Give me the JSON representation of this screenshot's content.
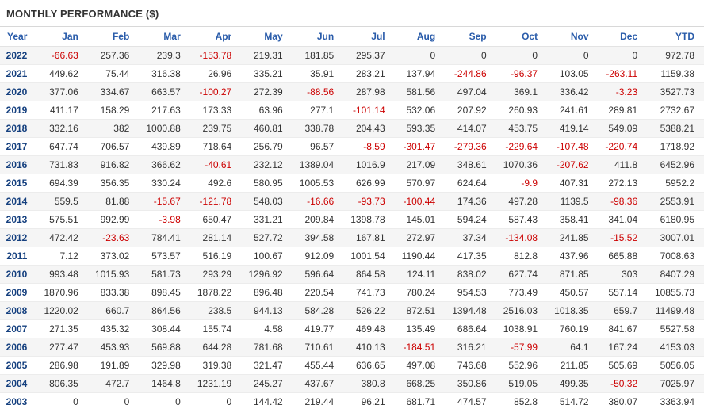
{
  "title": "MONTHLY PERFORMANCE ($)",
  "colors": {
    "negative_value": "#cc0000",
    "positive_value": "#333333",
    "column_header": "#2a5caa",
    "year_label": "#15407f",
    "zebra_stripe": "#f5f5f5"
  },
  "chart_data": {
    "type": "table",
    "title": "MONTHLY PERFORMANCE ($)",
    "columns": [
      "Year",
      "Jan",
      "Feb",
      "Mar",
      "Apr",
      "May",
      "Jun",
      "Jul",
      "Aug",
      "Sep",
      "Oct",
      "Nov",
      "Dec",
      "YTD"
    ],
    "rows": [
      {
        "year": "2022",
        "values": [
          "-66.63",
          "257.36",
          "239.3",
          "-153.78",
          "219.31",
          "181.85",
          "295.37",
          "0",
          "0",
          "0",
          "0",
          "0",
          "972.78"
        ]
      },
      {
        "year": "2021",
        "values": [
          "449.62",
          "75.44",
          "316.38",
          "26.96",
          "335.21",
          "35.91",
          "283.21",
          "137.94",
          "-244.86",
          "-96.37",
          "103.05",
          "-263.11",
          "1159.38"
        ]
      },
      {
        "year": "2020",
        "values": [
          "377.06",
          "334.67",
          "663.57",
          "-100.27",
          "272.39",
          "-88.56",
          "287.98",
          "581.56",
          "497.04",
          "369.1",
          "336.42",
          "-3.23",
          "3527.73"
        ]
      },
      {
        "year": "2019",
        "values": [
          "411.17",
          "158.29",
          "217.63",
          "173.33",
          "63.96",
          "277.1",
          "-101.14",
          "532.06",
          "207.92",
          "260.93",
          "241.61",
          "289.81",
          "2732.67"
        ]
      },
      {
        "year": "2018",
        "values": [
          "332.16",
          "382",
          "1000.88",
          "239.75",
          "460.81",
          "338.78",
          "204.43",
          "593.35",
          "414.07",
          "453.75",
          "419.14",
          "549.09",
          "5388.21"
        ]
      },
      {
        "year": "2017",
        "values": [
          "647.74",
          "706.57",
          "439.89",
          "718.64",
          "256.79",
          "96.57",
          "-8.59",
          "-301.47",
          "-279.36",
          "-229.64",
          "-107.48",
          "-220.74",
          "1718.92"
        ]
      },
      {
        "year": "2016",
        "values": [
          "731.83",
          "916.82",
          "366.62",
          "-40.61",
          "232.12",
          "1389.04",
          "1016.9",
          "217.09",
          "348.61",
          "1070.36",
          "-207.62",
          "411.8",
          "6452.96"
        ]
      },
      {
        "year": "2015",
        "values": [
          "694.39",
          "356.35",
          "330.24",
          "492.6",
          "580.95",
          "1005.53",
          "626.99",
          "570.97",
          "624.64",
          "-9.9",
          "407.31",
          "272.13",
          "5952.2"
        ]
      },
      {
        "year": "2014",
        "values": [
          "559.5",
          "81.88",
          "-15.67",
          "-121.78",
          "548.03",
          "-16.66",
          "-93.73",
          "-100.44",
          "174.36",
          "497.28",
          "1139.5",
          "-98.36",
          "2553.91"
        ]
      },
      {
        "year": "2013",
        "values": [
          "575.51",
          "992.99",
          "-3.98",
          "650.47",
          "331.21",
          "209.84",
          "1398.78",
          "145.01",
          "594.24",
          "587.43",
          "358.41",
          "341.04",
          "6180.95"
        ]
      },
      {
        "year": "2012",
        "values": [
          "472.42",
          "-23.63",
          "784.41",
          "281.14",
          "527.72",
          "394.58",
          "167.81",
          "272.97",
          "37.34",
          "-134.08",
          "241.85",
          "-15.52",
          "3007.01"
        ]
      },
      {
        "year": "2011",
        "values": [
          "7.12",
          "373.02",
          "573.57",
          "516.19",
          "100.67",
          "912.09",
          "1001.54",
          "1190.44",
          "417.35",
          "812.8",
          "437.96",
          "665.88",
          "7008.63"
        ]
      },
      {
        "year": "2010",
        "values": [
          "993.48",
          "1015.93",
          "581.73",
          "293.29",
          "1296.92",
          "596.64",
          "864.58",
          "124.11",
          "838.02",
          "627.74",
          "871.85",
          "303",
          "8407.29"
        ]
      },
      {
        "year": "2009",
        "values": [
          "1870.96",
          "833.38",
          "898.45",
          "1878.22",
          "896.48",
          "220.54",
          "741.73",
          "780.24",
          "954.53",
          "773.49",
          "450.57",
          "557.14",
          "10855.73"
        ]
      },
      {
        "year": "2008",
        "values": [
          "1220.02",
          "660.7",
          "864.56",
          "238.5",
          "944.13",
          "584.28",
          "526.22",
          "872.51",
          "1394.48",
          "2516.03",
          "1018.35",
          "659.7",
          "11499.48"
        ]
      },
      {
        "year": "2007",
        "values": [
          "271.35",
          "435.32",
          "308.44",
          "155.74",
          "4.58",
          "419.77",
          "469.48",
          "135.49",
          "686.64",
          "1038.91",
          "760.19",
          "841.67",
          "5527.58"
        ]
      },
      {
        "year": "2006",
        "values": [
          "277.47",
          "453.93",
          "569.88",
          "644.28",
          "781.68",
          "710.61",
          "410.13",
          "-184.51",
          "316.21",
          "-57.99",
          "64.1",
          "167.24",
          "4153.03"
        ]
      },
      {
        "year": "2005",
        "values": [
          "286.98",
          "191.89",
          "329.98",
          "319.38",
          "321.47",
          "455.44",
          "636.65",
          "497.08",
          "746.68",
          "552.96",
          "211.85",
          "505.69",
          "5056.05"
        ]
      },
      {
        "year": "2004",
        "values": [
          "806.35",
          "472.7",
          "1464.8",
          "1231.19",
          "245.27",
          "437.67",
          "380.8",
          "668.25",
          "350.86",
          "519.05",
          "499.35",
          "-50.32",
          "7025.97"
        ]
      },
      {
        "year": "2003",
        "values": [
          "0",
          "0",
          "0",
          "0",
          "144.42",
          "219.44",
          "96.21",
          "681.71",
          "474.57",
          "852.8",
          "514.72",
          "380.07",
          "3363.94"
        ]
      }
    ]
  }
}
